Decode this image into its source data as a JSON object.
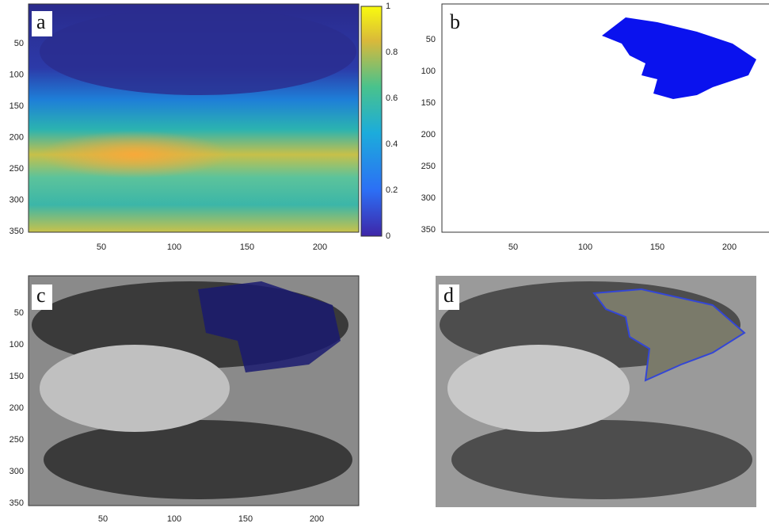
{
  "panels": [
    {
      "label": "a",
      "yticks": [
        "50",
        "100",
        "150",
        "200",
        "250",
        "300",
        "350"
      ],
      "xticks": [
        "50",
        "100",
        "150",
        "200"
      ],
      "colorbar_ticks": [
        "1",
        "0.8",
        "0.6",
        "0.4",
        "0.2",
        "0"
      ]
    },
    {
      "label": "b",
      "yticks": [
        "50",
        "100",
        "150",
        "200",
        "250",
        "300",
        "350"
      ],
      "xticks": [
        "50",
        "100",
        "150",
        "200"
      ]
    },
    {
      "label": "c",
      "yticks": [
        "50",
        "100",
        "150",
        "200",
        "250",
        "300",
        "350"
      ],
      "xticks": [
        "50",
        "100",
        "150",
        "200"
      ]
    },
    {
      "label": "d"
    }
  ]
}
